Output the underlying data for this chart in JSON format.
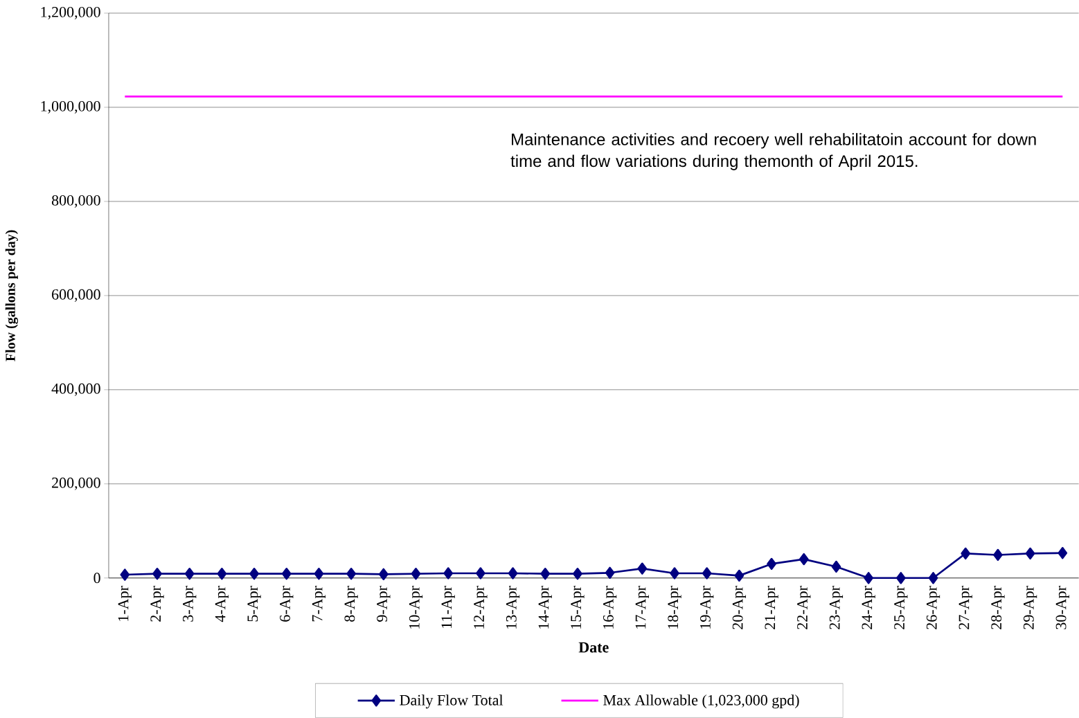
{
  "chart_data": {
    "type": "line",
    "xlabel": "Date",
    "ylabel": "Flow (gallons per day)",
    "categories": [
      "1-Apr",
      "2-Apr",
      "3-Apr",
      "4-Apr",
      "5-Apr",
      "6-Apr",
      "7-Apr",
      "8-Apr",
      "9-Apr",
      "10-Apr",
      "11-Apr",
      "12-Apr",
      "13-Apr",
      "14-Apr",
      "15-Apr",
      "16-Apr",
      "17-Apr",
      "18-Apr",
      "19-Apr",
      "20-Apr",
      "21-Apr",
      "22-Apr",
      "23-Apr",
      "24-Apr",
      "25-Apr",
      "26-Apr",
      "27-Apr",
      "28-Apr",
      "29-Apr",
      "30-Apr"
    ],
    "series": [
      {
        "name": "Daily Flow Total",
        "color": "#000080",
        "marker": "diamond",
        "values": [
          7000,
          9000,
          9000,
          9000,
          9000,
          9000,
          9000,
          9000,
          8000,
          9000,
          10000,
          10000,
          10000,
          9000,
          9000,
          11000,
          20000,
          10000,
          10000,
          5000,
          30000,
          40000,
          24000,
          0,
          0,
          0,
          52000,
          49000,
          52000,
          53000
        ]
      },
      {
        "name": "Max Allowable (1,023,000 gpd)",
        "color": "#ff00ff",
        "marker": "none",
        "values": [
          1023000,
          1023000,
          1023000,
          1023000,
          1023000,
          1023000,
          1023000,
          1023000,
          1023000,
          1023000,
          1023000,
          1023000,
          1023000,
          1023000,
          1023000,
          1023000,
          1023000,
          1023000,
          1023000,
          1023000,
          1023000,
          1023000,
          1023000,
          1023000,
          1023000,
          1023000,
          1023000,
          1023000,
          1023000,
          1023000
        ]
      }
    ],
    "ylim": [
      0,
      1200000
    ],
    "yticks": [
      {
        "value": 0,
        "label": "0"
      },
      {
        "value": 200000,
        "label": "200,000"
      },
      {
        "value": 400000,
        "label": "400,000"
      },
      {
        "value": 600000,
        "label": "600,000"
      },
      {
        "value": 800000,
        "label": "800,000"
      },
      {
        "value": 1000000,
        "label": "1,000,000"
      },
      {
        "value": 1200000,
        "label": "1,200,000"
      }
    ],
    "grid": "y",
    "legend": "bottom",
    "line_style": "solid",
    "annotations": [
      "Maintenance activities and recoery well rehabilitatoin account for down time and flow variations during themonth of April 2015."
    ]
  }
}
